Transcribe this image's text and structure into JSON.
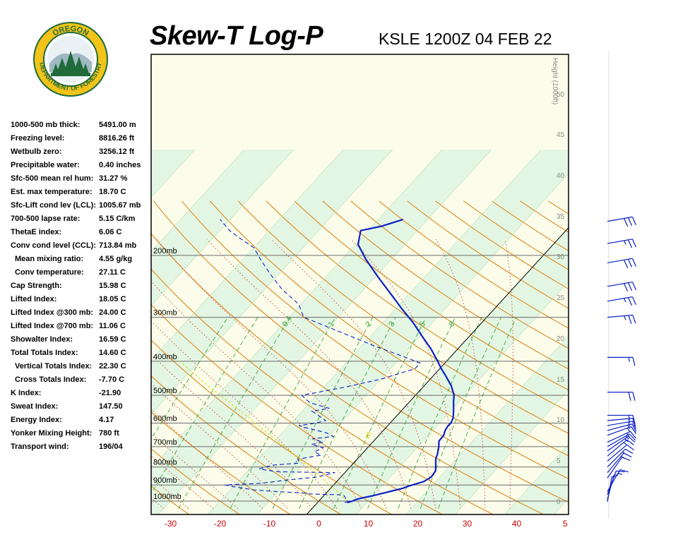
{
  "header": {
    "title": "Skew-T Log-P",
    "station": "KSLE 1200Z 04 FEB 22"
  },
  "logo": {
    "top_text": "OREGON",
    "bottom_text": "DEPARTMENT OF FORESTRY",
    "colors": {
      "ring": "#1f6b3a",
      "gold": "#f2c318",
      "tree": "#1f6b3a"
    }
  },
  "indices": [
    {
      "label": "1000-500 mb thick:",
      "value": "5491.00 m",
      "indent": false
    },
    {
      "label": "Freezing level:",
      "value": "8816.26 ft",
      "indent": false
    },
    {
      "label": "Wetbulb zero:",
      "value": "3256.12 ft",
      "indent": false
    },
    {
      "label": "Precipitable water:",
      "value": "0.40 inches",
      "indent": false
    },
    {
      "label": "Sfc-500 mean rel hum:",
      "value": "31.27 %",
      "indent": false
    },
    {
      "label": "Est. max temperature:",
      "value": "18.70 C",
      "indent": false
    },
    {
      "label": "Sfc-Lift cond lev (LCL):",
      "value": "1005.67 mb",
      "indent": false
    },
    {
      "label": "700-500 lapse rate:",
      "value": "5.15 C/km",
      "indent": false
    },
    {
      "label": "ThetaE index:",
      "value": "6.06 C",
      "indent": false
    },
    {
      "label": "Conv cond level (CCL):",
      "value": "713.84 mb",
      "indent": false
    },
    {
      "label": "Mean mixing ratio:",
      "value": "4.55 g/kg",
      "indent": true
    },
    {
      "label": "Conv temperature:",
      "value": "27.11 C",
      "indent": true
    },
    {
      "label": "Cap Strength:",
      "value": "15.98 C",
      "indent": false
    },
    {
      "label": "Lifted Index:",
      "value": "18.05 C",
      "indent": false
    },
    {
      "label": "Lifted Index @300 mb:",
      "value": "24.00 C",
      "indent": false
    },
    {
      "label": "Lifted Index @700 mb:",
      "value": "11.06 C",
      "indent": false
    },
    {
      "label": "Showalter Index:",
      "value": "16.59 C",
      "indent": false
    },
    {
      "label": "Total Totals Index:",
      "value": "14.60 C",
      "indent": false
    },
    {
      "label": "Vertical Totals Index:",
      "value": "22.30 C",
      "indent": true
    },
    {
      "label": "Cross Totals Index:",
      "value": "-7.70 C",
      "indent": true
    },
    {
      "label": "K Index:",
      "value": "-21.90",
      "indent": false
    },
    {
      "label": "Sweat Index:",
      "value": "147.50",
      "indent": false
    },
    {
      "label": "Energy Index:",
      "value": "4.17",
      "indent": false
    },
    {
      "label": "Yonker Mixing Height:",
      "value": "780 ft",
      "indent": false
    },
    {
      "label": "Transport wind:",
      "value": "196/04",
      "indent": false
    }
  ],
  "chart_data": {
    "type": "line",
    "subtype": "skew-t log-p",
    "x_axis": {
      "unit": "C",
      "ticks": [
        -30,
        -20,
        -10,
        0,
        10,
        20,
        30,
        40
      ],
      "partial_tick": "5",
      "label_color": "#cc0000"
    },
    "pressure_levels_mb": [
      200,
      300,
      400,
      500,
      600,
      700,
      800,
      900,
      1000
    ],
    "pressure_labels": [
      "200mb",
      "300mb",
      "400mb",
      "500mb",
      "600mb",
      "700mb",
      "800mb",
      "900mb",
      "1000mb"
    ],
    "height_axis": {
      "label": "Height (1000ft)",
      "ticks": [
        "50",
        "45",
        "40",
        "35",
        "30",
        "25",
        "20",
        "15",
        "10",
        "5",
        "0"
      ]
    },
    "mixing_ratio_labels": [
      "0.4",
      "1",
      "2",
      "3",
      "5",
      "8"
    ],
    "adiabat_label": "m",
    "series": [
      {
        "name": "temperature",
        "color": "#0a1fc4",
        "style": "solid",
        "points": [
          {
            "p": 1010,
            "t": 6
          },
          {
            "p": 1000,
            "t": 6.8
          },
          {
            "p": 990,
            "t": 7.2
          },
          {
            "p": 980,
            "t": 8.2
          },
          {
            "p": 965,
            "t": 10
          },
          {
            "p": 950,
            "t": 11.5
          },
          {
            "p": 935,
            "t": 13
          },
          {
            "p": 920,
            "t": 14.6
          },
          {
            "p": 905,
            "t": 15.5
          },
          {
            "p": 880,
            "t": 17.6
          },
          {
            "p": 855,
            "t": 18.3
          },
          {
            "p": 820,
            "t": 18
          },
          {
            "p": 790,
            "t": 17
          },
          {
            "p": 760,
            "t": 15.9
          },
          {
            "p": 735,
            "t": 15.3
          },
          {
            "p": 700,
            "t": 14.2
          },
          {
            "p": 675,
            "t": 13.2
          },
          {
            "p": 650,
            "t": 13.1
          },
          {
            "p": 630,
            "t": 12.5
          },
          {
            "p": 610,
            "t": 12.2
          },
          {
            "p": 600,
            "t": 12.3
          },
          {
            "p": 580,
            "t": 11.8
          },
          {
            "p": 550,
            "t": 10.4
          },
          {
            "p": 520,
            "t": 8.8
          },
          {
            "p": 500,
            "t": 7.8
          },
          {
            "p": 470,
            "t": 5.5
          },
          {
            "p": 440,
            "t": 2.5
          },
          {
            "p": 420,
            "t": 0.3
          },
          {
            "p": 400,
            "t": -1.8
          },
          {
            "p": 370,
            "t": -5.3
          },
          {
            "p": 340,
            "t": -9.5
          },
          {
            "p": 310,
            "t": -14
          },
          {
            "p": 285,
            "t": -18.5
          },
          {
            "p": 260,
            "t": -23.2
          },
          {
            "p": 230,
            "t": -29.5
          },
          {
            "p": 205,
            "t": -35.2
          },
          {
            "p": 186,
            "t": -39.5
          },
          {
            "p": 170,
            "t": -41.5
          },
          {
            "p": 165,
            "t": -38
          },
          {
            "p": 158,
            "t": -35
          }
        ]
      },
      {
        "name": "dewpoint",
        "color": "#0a1fc4",
        "style": "dashed",
        "points": [
          {
            "p": 1010,
            "t": 5.5
          },
          {
            "p": 1000,
            "t": 5.9
          },
          {
            "p": 990,
            "t": 5.2
          },
          {
            "p": 975,
            "t": 4.6
          },
          {
            "p": 960,
            "t": 3.8
          },
          {
            "p": 955,
            "t": -3
          },
          {
            "p": 950,
            "t": -3.8
          },
          {
            "p": 940,
            "t": -10
          },
          {
            "p": 930,
            "t": -15
          },
          {
            "p": 910,
            "t": -20
          },
          {
            "p": 900,
            "t": -22
          },
          {
            "p": 890,
            "t": -15
          },
          {
            "p": 870,
            "t": -10
          },
          {
            "p": 855,
            "t": -5
          },
          {
            "p": 830,
            "t": -2
          },
          {
            "p": 825,
            "t": -14
          },
          {
            "p": 810,
            "t": -18
          },
          {
            "p": 790,
            "t": -16
          },
          {
            "p": 780,
            "t": -11
          },
          {
            "p": 760,
            "t": -12
          },
          {
            "p": 740,
            "t": -8
          },
          {
            "p": 725,
            "t": -10
          },
          {
            "p": 705,
            "t": -9
          },
          {
            "p": 690,
            "t": -12
          },
          {
            "p": 680,
            "t": -10
          },
          {
            "p": 665,
            "t": -12.8
          },
          {
            "p": 655,
            "t": -9
          },
          {
            "p": 640,
            "t": -11
          },
          {
            "p": 630,
            "t": -13.3
          },
          {
            "p": 615,
            "t": -17
          },
          {
            "p": 610,
            "t": -18
          },
          {
            "p": 600,
            "t": -15
          },
          {
            "p": 590,
            "t": -13.5
          },
          {
            "p": 570,
            "t": -16
          },
          {
            "p": 555,
            "t": -18
          },
          {
            "p": 545,
            "t": -15
          },
          {
            "p": 525,
            "t": -20
          },
          {
            "p": 500,
            "t": -23
          },
          {
            "p": 475,
            "t": -16
          },
          {
            "p": 450,
            "t": -10
          },
          {
            "p": 420,
            "t": -5
          },
          {
            "p": 405,
            "t": -5
          },
          {
            "p": 390,
            "t": -9
          },
          {
            "p": 360,
            "t": -18
          },
          {
            "p": 330,
            "t": -27
          },
          {
            "p": 300,
            "t": -37
          },
          {
            "p": 275,
            "t": -40.5
          },
          {
            "p": 250,
            "t": -46.5
          },
          {
            "p": 225,
            "t": -52
          },
          {
            "p": 205,
            "t": -56.5
          },
          {
            "p": 190,
            "t": -60
          },
          {
            "p": 180,
            "t": -64
          },
          {
            "p": 170,
            "t": -68
          },
          {
            "p": 158,
            "t": -72
          }
        ]
      },
      {
        "name": "parcel",
        "color": "#d8d800",
        "style": "dashed",
        "points": [
          {
            "p": 1000,
            "t": 5.6
          },
          {
            "p": 950,
            "t": 2.7
          },
          {
            "p": 900,
            "t": -0.8
          },
          {
            "p": 850,
            "t": -4.3
          },
          {
            "p": 800,
            "t": -8.3
          },
          {
            "p": 750,
            "t": -12.5
          },
          {
            "p": 700,
            "t": -17
          },
          {
            "p": 650,
            "t": -22
          },
          {
            "p": 600,
            "t": -27.3
          },
          {
            "p": 550,
            "t": -33
          },
          {
            "p": 500,
            "t": -39.5
          },
          {
            "p": 450,
            "t": -46.5
          },
          {
            "p": 400,
            "t": -54
          }
        ]
      }
    ],
    "wind_barbs": [
      {
        "p": 160,
        "dir": 260,
        "spd": 30
      },
      {
        "p": 185,
        "dir": 260,
        "spd": 25
      },
      {
        "p": 210,
        "dir": 260,
        "spd": 30
      },
      {
        "p": 245,
        "dir": 260,
        "spd": 30
      },
      {
        "p": 270,
        "dir": 260,
        "spd": 25
      },
      {
        "p": 300,
        "dir": 265,
        "spd": 25
      },
      {
        "p": 390,
        "dir": 270,
        "spd": 15
      },
      {
        "p": 490,
        "dir": 270,
        "spd": 20
      },
      {
        "p": 570,
        "dir": 270,
        "spd": 15
      },
      {
        "p": 590,
        "dir": 265,
        "spd": 15
      },
      {
        "p": 610,
        "dir": 260,
        "spd": 15
      },
      {
        "p": 630,
        "dir": 255,
        "spd": 15
      },
      {
        "p": 650,
        "dir": 250,
        "spd": 15
      },
      {
        "p": 680,
        "dir": 245,
        "spd": 15
      },
      {
        "p": 700,
        "dir": 240,
        "spd": 15
      },
      {
        "p": 720,
        "dir": 235,
        "spd": 15
      },
      {
        "p": 745,
        "dir": 230,
        "spd": 15
      },
      {
        "p": 770,
        "dir": 230,
        "spd": 10
      },
      {
        "p": 800,
        "dir": 225,
        "spd": 15
      },
      {
        "p": 830,
        "dir": 220,
        "spd": 15
      },
      {
        "p": 860,
        "dir": 215,
        "spd": 10
      },
      {
        "p": 940,
        "dir": 210,
        "spd": 15
      },
      {
        "p": 960,
        "dir": 200,
        "spd": 10
      },
      {
        "p": 990,
        "dir": 195,
        "spd": 5
      },
      {
        "p": 1005,
        "dir": 190,
        "spd": 5
      }
    ]
  }
}
